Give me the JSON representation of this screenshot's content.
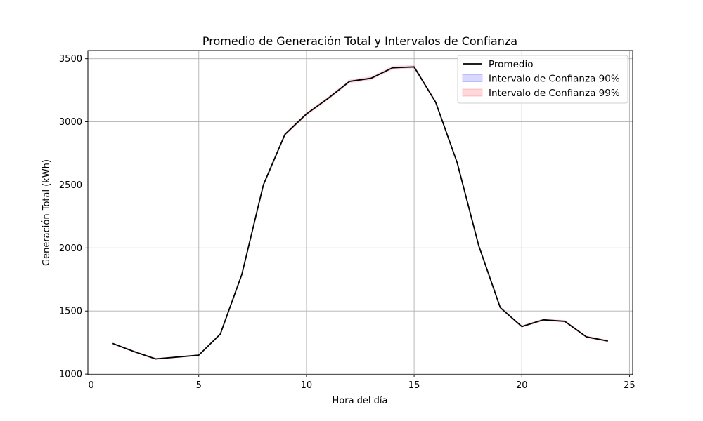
{
  "chart_data": {
    "type": "line",
    "title": "Promedio de Generación Total y Intervalos de Confianza",
    "xlabel": "Hora del día",
    "ylabel": "Generación Total (kWh)",
    "xlim": [
      -0.15,
      25.15
    ],
    "ylim": [
      995,
      3565
    ],
    "xticks": [
      0,
      5,
      10,
      15,
      20,
      25
    ],
    "yticks": [
      1000,
      1500,
      2000,
      2500,
      3000,
      3500
    ],
    "grid": true,
    "legend_position": "top-right",
    "x": [
      1,
      2,
      3,
      4,
      5,
      6,
      7,
      8,
      9,
      10,
      11,
      12,
      13,
      14,
      15,
      16,
      17,
      18,
      19,
      20,
      21,
      22,
      23,
      24
    ],
    "series": [
      {
        "name": "Promedio",
        "kind": "line",
        "color": "#000000",
        "values": [
          1243,
          1178,
          1120,
          1135,
          1150,
          1317,
          1790,
          2500,
          2900,
          3062,
          3185,
          3320,
          3345,
          3428,
          3435,
          3155,
          2675,
          2018,
          1527,
          1377,
          1430,
          1418,
          1295,
          1262
        ]
      },
      {
        "name": "Intervalo de Confianza 90%",
        "kind": "band",
        "color": "#0000ff",
        "opacity": 0.12,
        "lower": [
          1239,
          1174,
          1116,
          1131,
          1146,
          1313,
          1785,
          2494,
          2893,
          3055,
          3178,
          3312,
          3337,
          3420,
          3427,
          3148,
          2668,
          2012,
          1522,
          1372,
          1425,
          1413,
          1290,
          1257
        ],
        "upper": [
          1247,
          1182,
          1124,
          1139,
          1154,
          1321,
          1795,
          2506,
          2907,
          3069,
          3192,
          3328,
          3353,
          3436,
          3443,
          3162,
          2682,
          2024,
          1532,
          1382,
          1435,
          1423,
          1300,
          1267
        ]
      },
      {
        "name": "Intervalo de Confianza 99%",
        "kind": "band",
        "color": "#ff0000",
        "opacity": 0.12,
        "lower": [
          1235,
          1170,
          1112,
          1127,
          1142,
          1309,
          1780,
          2488,
          2886,
          3048,
          3171,
          3304,
          3329,
          3412,
          3419,
          3141,
          2661,
          2006,
          1517,
          1367,
          1420,
          1408,
          1285,
          1252
        ],
        "upper": [
          1251,
          1186,
          1128,
          1143,
          1158,
          1325,
          1800,
          2512,
          2914,
          3076,
          3199,
          3336,
          3361,
          3444,
          3451,
          3169,
          2689,
          2030,
          1537,
          1387,
          1440,
          1428,
          1305,
          1272
        ]
      }
    ]
  }
}
